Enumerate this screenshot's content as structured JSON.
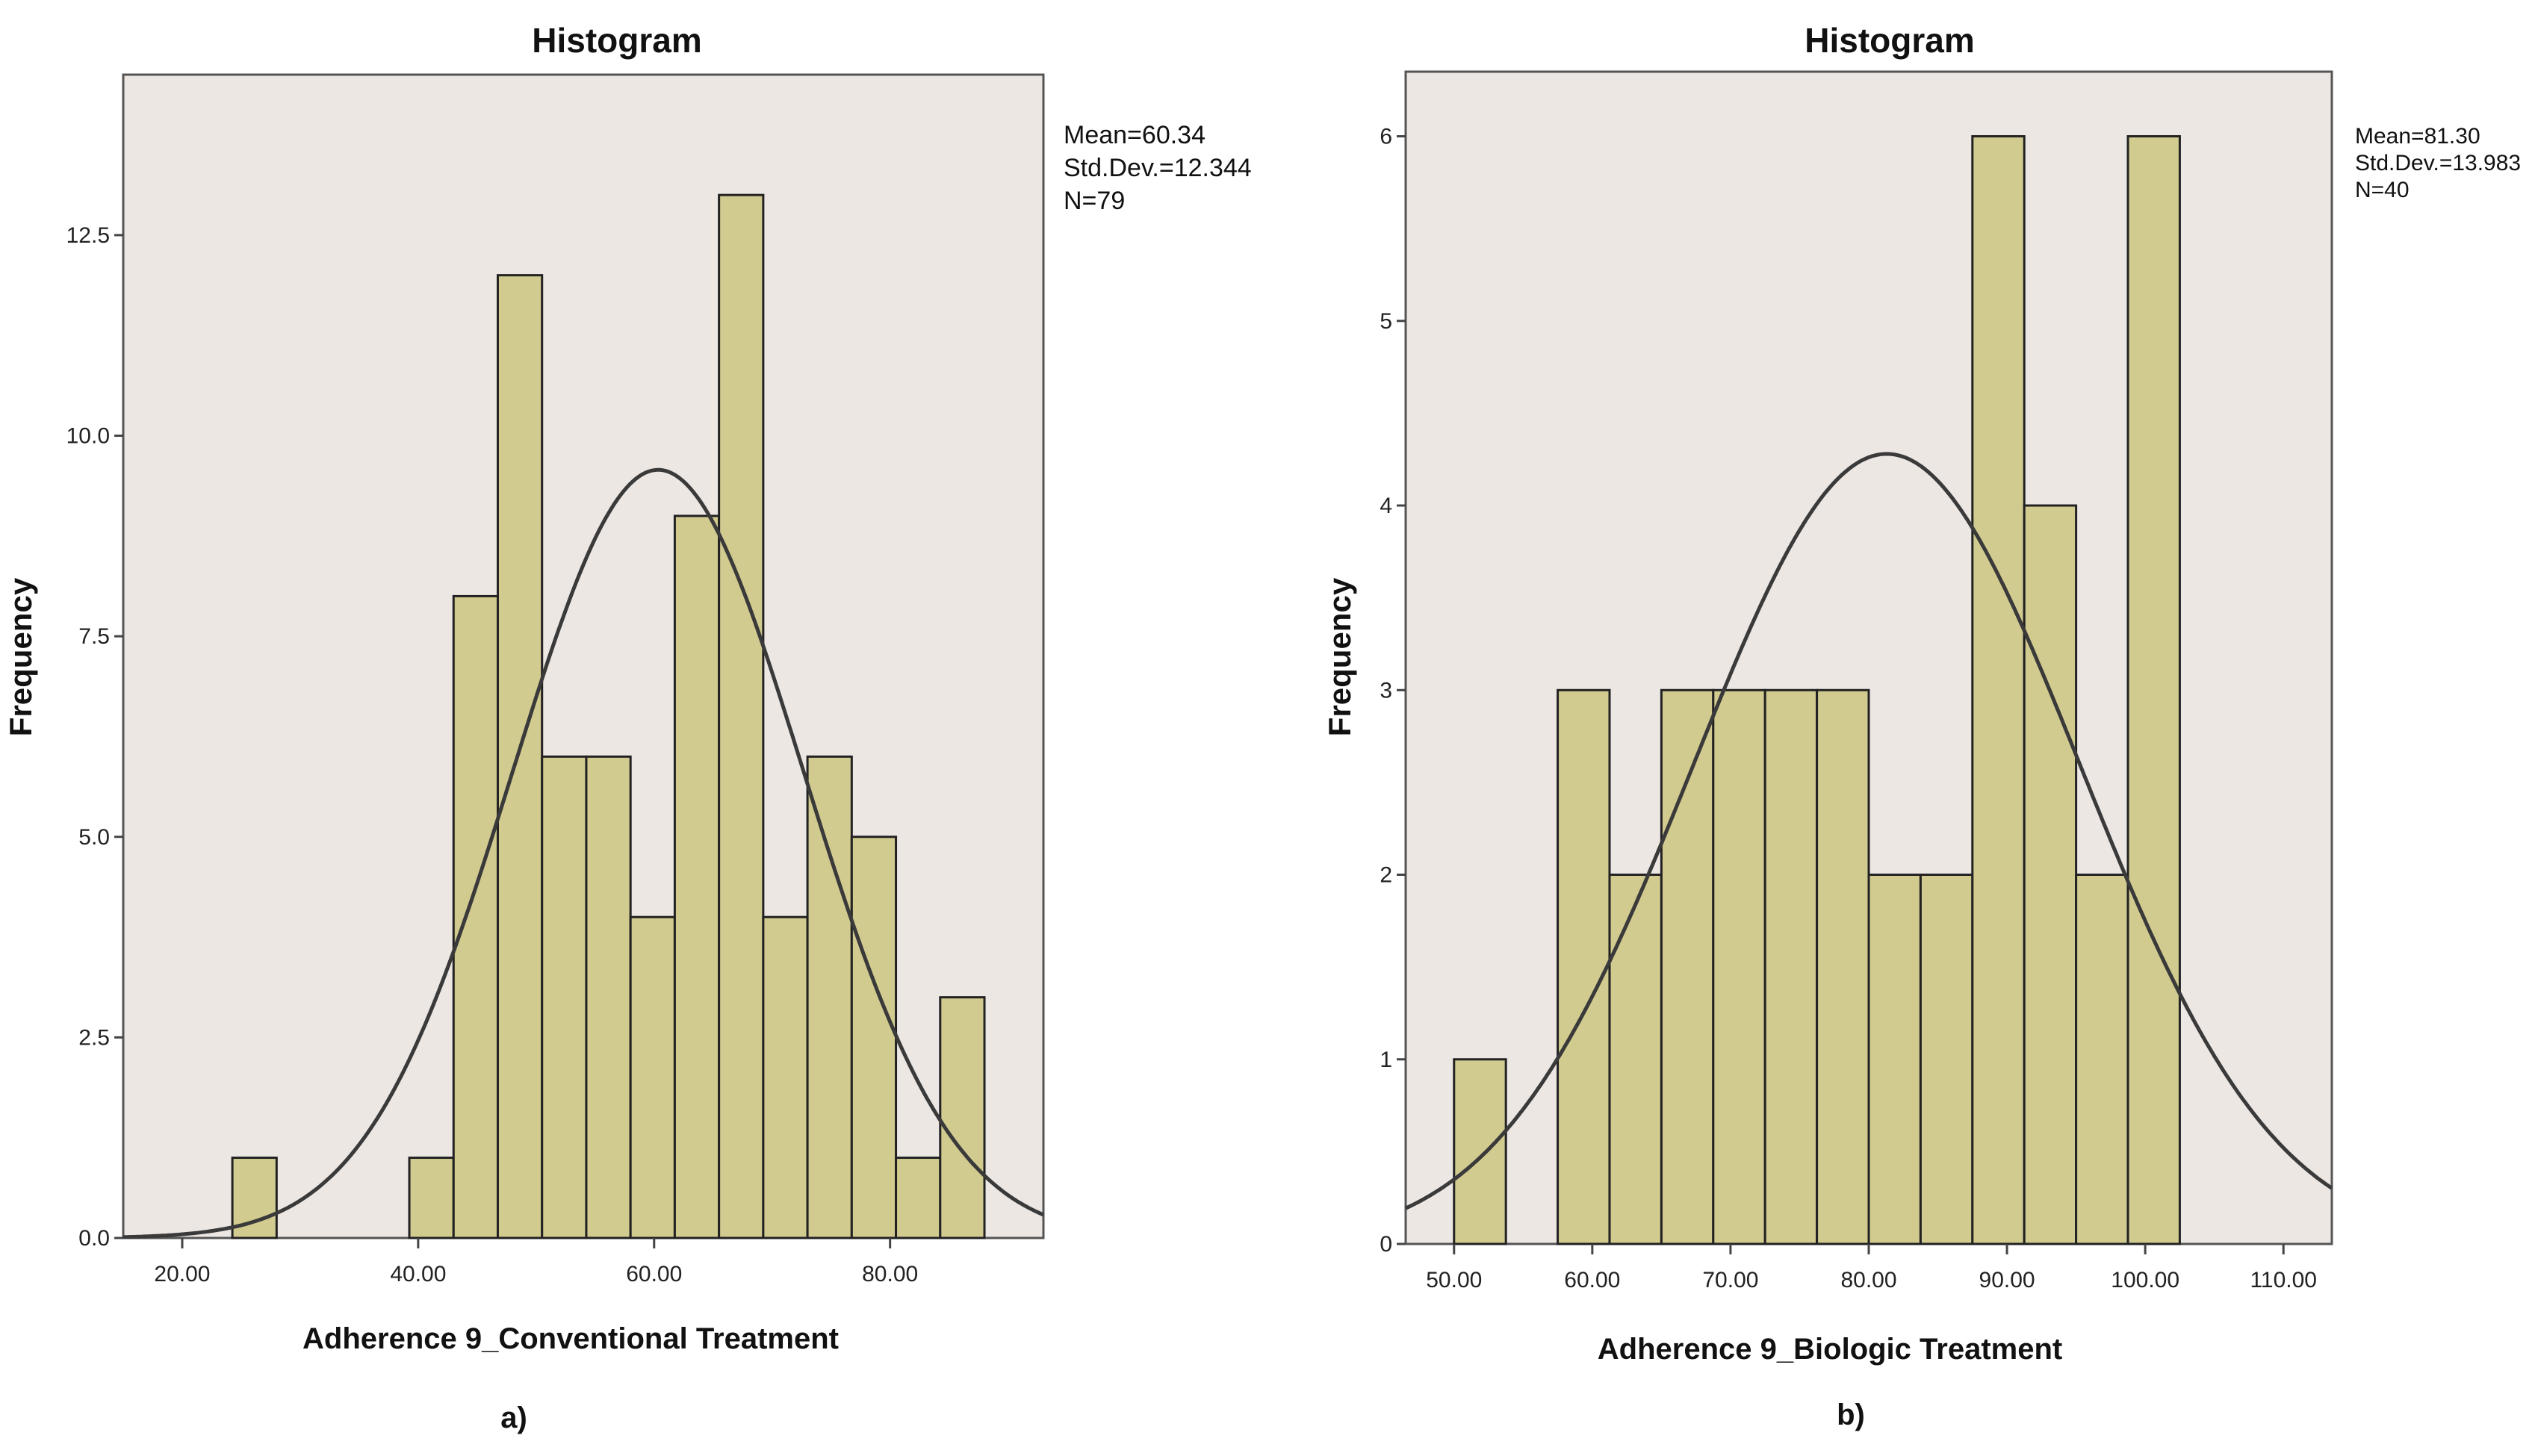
{
  "chart_data": [
    {
      "type": "bar",
      "title": "Histogram",
      "xlabel": "Adherence 9_Conventional Treatment",
      "ylabel": "Frequency",
      "panel_label": "a)",
      "xlim": [
        15,
        93
      ],
      "ylim": [
        0,
        14.5
      ],
      "xticks": [
        20,
        40,
        60,
        80
      ],
      "xtick_labels": [
        "20.00",
        "40.00",
        "60.00",
        "80.00"
      ],
      "yticks": [
        0,
        2.5,
        5,
        7.5,
        10,
        12.5
      ],
      "ytick_labels": [
        "0.0",
        "2.5",
        "5.0",
        "7.5",
        "10.0",
        "12.5"
      ],
      "bin_width": 3.75,
      "bin_starts": [
        24.25,
        39.25,
        43.0,
        46.75,
        50.5,
        54.25,
        58.0,
        61.75,
        65.5,
        69.25,
        73.0,
        76.75,
        80.5,
        84.25
      ],
      "values": [
        1,
        1,
        8,
        12,
        6,
        6,
        4,
        9,
        13,
        4,
        6,
        5,
        1,
        3
      ],
      "normal_curve": {
        "mean": 60.34,
        "sd": 12.344,
        "n": 79
      },
      "stats": [
        "Mean=60.34",
        "Std.Dev.=12.344",
        "N=79"
      ],
      "bar_color": "#d2cb90",
      "background_color": "#ede7e4",
      "grid": false
    },
    {
      "type": "bar",
      "title": "Histogram",
      "xlabel": "Adherence 9_Biologic Treatment",
      "ylabel": "Frequency",
      "panel_label": "b)",
      "xlim": [
        46.5,
        113.5
      ],
      "ylim": [
        0,
        6.35
      ],
      "xticks": [
        50,
        60,
        70,
        80,
        90,
        100,
        110
      ],
      "xtick_labels": [
        "50.00",
        "60.00",
        "70.00",
        "80.00",
        "90.00",
        "100.00",
        "110.00"
      ],
      "yticks": [
        0,
        1,
        2,
        3,
        4,
        5,
        6
      ],
      "ytick_labels": [
        "0",
        "1",
        "2",
        "3",
        "4",
        "5",
        "6"
      ],
      "bin_width": 3.75,
      "bin_starts": [
        50.0,
        57.5,
        61.25,
        65.0,
        68.75,
        72.5,
        76.25,
        80.0,
        83.75,
        87.5,
        91.25,
        95.0,
        98.75
      ],
      "values": [
        1,
        3,
        2,
        3,
        3,
        3,
        3,
        2,
        2,
        6,
        4,
        2,
        6
      ],
      "normal_curve": {
        "mean": 81.3,
        "sd": 13.983,
        "n": 40
      },
      "stats": [
        "Mean=81.30",
        "Std.Dev.=13.983",
        "N=40"
      ],
      "bar_color": "#d2cb90",
      "background_color": "#ede7e4",
      "grid": false
    }
  ]
}
